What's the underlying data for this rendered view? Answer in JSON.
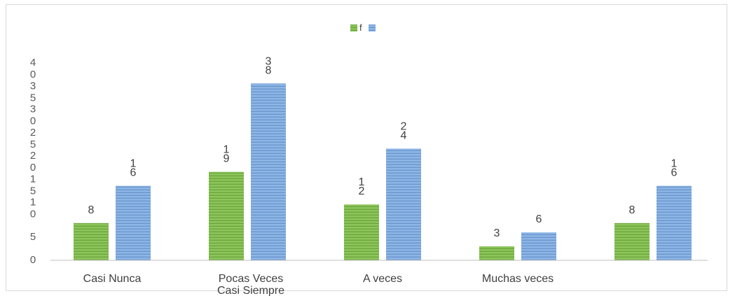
{
  "chart_data": {
    "type": "bar",
    "title": "",
    "xlabel": "",
    "ylabel": "",
    "categories": [
      "Casi Nunca",
      "Pocas Veces\nCasi Siempre",
      "A veces",
      "Muchas  veces",
      ""
    ],
    "series": [
      {
        "name": "f",
        "color": "#7db94a",
        "values": [
          8,
          19,
          12,
          3,
          8
        ]
      },
      {
        "color": "#7aa6db",
        "values": [
          16,
          38,
          24,
          6,
          16
        ]
      }
    ],
    "data_labels": [
      [
        "8",
        "1\n9",
        "1\n2",
        "3",
        "8"
      ],
      [
        "1\n6",
        "3\n8",
        "2\n4",
        "6",
        "1\n6"
      ]
    ],
    "ylim": [
      0,
      40
    ],
    "yticks": [
      "0",
      "5",
      "1\n0",
      "1\n5",
      "2\n0",
      "2\n5",
      "3\n0",
      "3\n5",
      "4\n0"
    ],
    "grid": false,
    "legend_position": "top"
  }
}
